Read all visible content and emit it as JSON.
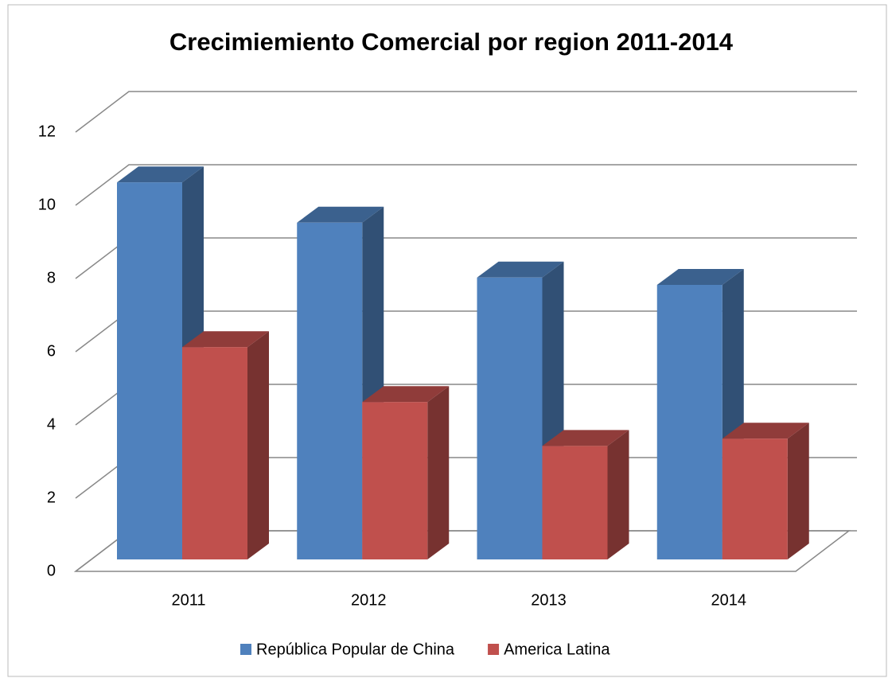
{
  "chart_data": {
    "type": "bar3d",
    "title": "Crecimiemiento Comercial por region  2011-2014",
    "categories": [
      "2011",
      "2012",
      "2013",
      "2014"
    ],
    "series": [
      {
        "name": "República Popular de China",
        "color": "#4f81bd",
        "values": [
          10.3,
          9.2,
          7.7,
          7.5
        ]
      },
      {
        "name": "America Latina",
        "color": "#c0504d",
        "values": [
          5.8,
          4.3,
          3.1,
          3.3
        ]
      }
    ],
    "ylim": [
      0,
      12
    ],
    "yticks": [
      0,
      2,
      4,
      6,
      8,
      10,
      12
    ],
    "grid": true,
    "legend": "bottom"
  }
}
